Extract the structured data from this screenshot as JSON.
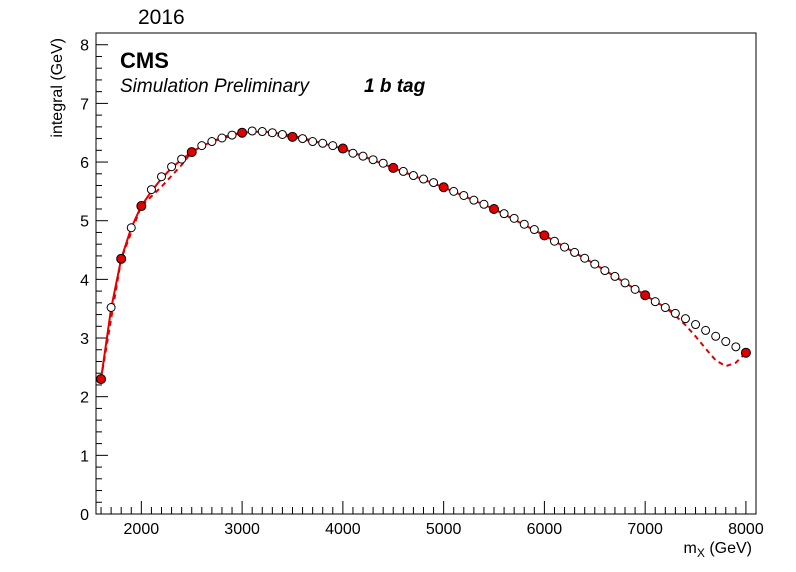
{
  "chart_data": {
    "type": "scatter",
    "year_label": "2016",
    "experiment_label": "CMS",
    "subtitle": "Simulation Preliminary",
    "category_label": "1 b tag",
    "xlabel_main": "m",
    "xlabel_sub": "X",
    "xlabel_unit": " (GeV)",
    "ylabel": "integral (GeV)",
    "xlim": [
      1550,
      8100
    ],
    "ylim": [
      0,
      8.2
    ],
    "x_ticks": [
      2000,
      3000,
      4000,
      5000,
      6000,
      7000,
      8000
    ],
    "y_ticks": [
      0,
      1,
      2,
      3,
      4,
      5,
      6,
      7,
      8
    ],
    "grid": false,
    "colors": {
      "filled": "#e00000",
      "line": "#e00000",
      "open": "#000000"
    },
    "series": [
      {
        "marker": "filled-circle",
        "x": [
          1600,
          1800,
          2000,
          2500,
          3000,
          3500,
          4000,
          4500,
          5000,
          5500,
          6000,
          7000,
          8000
        ],
        "y": [
          2.3,
          4.35,
          5.25,
          6.17,
          6.5,
          6.43,
          6.23,
          5.9,
          5.57,
          5.2,
          4.75,
          3.73,
          2.75
        ]
      },
      {
        "marker": "open-circle",
        "x": [
          1700,
          1900,
          2100,
          2200,
          2300,
          2400,
          2600,
          2700,
          2800,
          2900,
          3100,
          3200,
          3300,
          3400,
          3600,
          3700,
          3800,
          3900,
          4100,
          4200,
          4300,
          4400,
          4600,
          4700,
          4800,
          4900,
          5100,
          5200,
          5300,
          5400,
          5600,
          5700,
          5800,
          5900,
          6100,
          6200,
          6300,
          6400,
          6500,
          6600,
          6700,
          6800,
          6900,
          7100,
          7200,
          7300,
          7400,
          7500,
          7600,
          7700,
          7800,
          7900
        ],
        "y": [
          3.52,
          4.88,
          5.53,
          5.75,
          5.92,
          6.05,
          6.28,
          6.35,
          6.41,
          6.46,
          6.53,
          6.52,
          6.5,
          6.47,
          6.4,
          6.35,
          6.32,
          6.28,
          6.15,
          6.1,
          6.04,
          5.98,
          5.84,
          5.77,
          5.71,
          5.65,
          5.5,
          5.43,
          5.35,
          5.28,
          5.12,
          5.04,
          4.94,
          4.85,
          4.65,
          4.55,
          4.46,
          4.36,
          4.26,
          4.15,
          4.05,
          3.94,
          3.83,
          3.62,
          3.52,
          3.42,
          3.33,
          3.23,
          3.13,
          3.03,
          2.94,
          2.85
        ]
      },
      {
        "style": "solid-line",
        "x": [
          1600,
          1700,
          1800,
          1900,
          2000,
          2100,
          2200,
          2300,
          2400,
          2500,
          2600,
          2700,
          2800,
          2900,
          3000,
          3200,
          3400,
          3600,
          3800,
          4000,
          4500,
          5000,
          5500,
          6000,
          6500,
          7000,
          7200,
          7300
        ],
        "y": [
          2.3,
          3.5,
          4.35,
          4.88,
          5.25,
          5.5,
          5.72,
          5.9,
          6.04,
          6.17,
          6.27,
          6.35,
          6.42,
          6.47,
          6.5,
          6.52,
          6.48,
          6.41,
          6.32,
          6.23,
          5.9,
          5.57,
          5.2,
          4.75,
          4.26,
          3.73,
          3.52,
          3.42
        ]
      },
      {
        "style": "dashed-line",
        "x": [
          1600,
          1800,
          2000,
          2200,
          2400,
          2500,
          2700,
          3000,
          3500,
          4000,
          4500,
          5000,
          5500,
          6000,
          6500,
          7000,
          7200,
          7300,
          7400,
          7500,
          7600,
          7700,
          7800,
          7900,
          8000
        ],
        "y": [
          2.3,
          4.35,
          5.25,
          5.58,
          5.95,
          6.17,
          6.35,
          6.5,
          6.43,
          6.23,
          5.9,
          5.57,
          5.2,
          4.75,
          4.26,
          3.73,
          3.52,
          3.38,
          3.22,
          3.03,
          2.82,
          2.62,
          2.52,
          2.58,
          2.75
        ]
      }
    ]
  }
}
